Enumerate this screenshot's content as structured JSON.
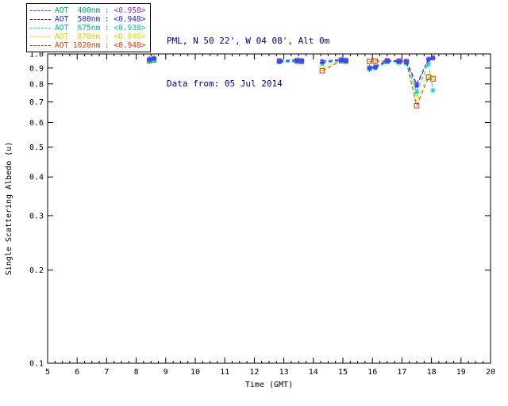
{
  "header": {
    "station_line": "PML, N 50 22', W 04 08', Alt 0m",
    "date_line": "Data from: 05 Jul 2014",
    "text_color": "#00008b"
  },
  "legend": {
    "separator": " : ",
    "entries": [
      {
        "label": "AOT  400nm",
        "value": "<0.958>",
        "line_color": "#4848ff",
        "label_color": "#00a878",
        "value_color": "#8a2be2"
      },
      {
        "label": "AOT  500nm",
        "value": "<0.948>",
        "line_color": "#0000d0",
        "label_color": "#2222ee",
        "value_color": "#2222ee"
      },
      {
        "label": "AOT  675nm",
        "value": "<0.938>",
        "line_color": "#00dcc8",
        "label_color": "#00b386",
        "value_color": "#00c8a0"
      },
      {
        "label": "AOT  870nm",
        "value": "<0.946>",
        "line_color": "#f0e000",
        "label_color": "#e0d000",
        "value_color": "#e8d800"
      },
      {
        "label": "AOT 1020nm",
        "value": "<0.948>",
        "line_color": "#b03010",
        "label_color": "#e04000",
        "value_color": "#ff3000"
      }
    ]
  },
  "chart_data": {
    "type": "scatter",
    "title": "",
    "xlabel": "Time (GMT)",
    "ylabel": "Single Scattering Albedo (u)",
    "xlim": [
      5,
      20
    ],
    "ylim": [
      0.1,
      1.0
    ],
    "yscale": "log",
    "grid": false,
    "legend_position": "top-left",
    "line_style": "dashed",
    "connect_gap_max_hours": 0.7,
    "xticks": [
      5,
      6,
      7,
      8,
      9,
      10,
      11,
      12,
      13,
      14,
      15,
      16,
      17,
      18,
      19,
      20
    ],
    "yticks": [
      1.0,
      0.9,
      0.8,
      0.7,
      0.6,
      0.5,
      0.4,
      0.3,
      0.2,
      0.1
    ],
    "x": [
      8.45,
      8.6,
      12.85,
      13.45,
      13.6,
      14.3,
      14.95,
      15.1,
      15.9,
      16.1,
      16.5,
      16.9,
      17.15,
      17.5,
      17.9,
      18.05
    ],
    "series": [
      {
        "name": "AOT 870nm",
        "legend_value": "<0.946>",
        "color": "#f0e000",
        "marker": "square",
        "values": [
          0.952,
          0.958,
          0.95,
          0.95,
          0.948,
          0.9,
          0.952,
          0.95,
          0.948,
          0.95,
          0.95,
          0.948,
          0.945,
          0.72,
          0.845,
          0.838
        ]
      },
      {
        "name": "AOT 1020nm",
        "legend_value": "<0.948>",
        "color": "#d04010",
        "marker": "square",
        "values": [
          0.95,
          0.956,
          0.948,
          0.948,
          0.946,
          0.882,
          0.95,
          0.948,
          0.946,
          0.948,
          0.948,
          0.946,
          0.942,
          0.68,
          0.84,
          0.83
        ]
      },
      {
        "name": "AOT 675nm",
        "legend_value": "<0.938>",
        "color": "#00d8c0",
        "marker": "asterisk",
        "values": [
          0.945,
          0.952,
          0.94,
          0.942,
          0.94,
          0.93,
          0.948,
          0.942,
          0.89,
          0.898,
          0.94,
          0.935,
          0.932,
          0.752,
          0.93,
          0.762
        ]
      },
      {
        "name": "AOT 500nm",
        "legend_value": "<0.948>",
        "color": "#2828d8",
        "marker": "asterisk",
        "values": [
          0.958,
          0.965,
          0.945,
          0.95,
          0.948,
          0.94,
          0.955,
          0.95,
          0.898,
          0.905,
          0.948,
          0.945,
          0.942,
          0.788,
          0.958,
          0.968
        ]
      },
      {
        "name": "AOT 400nm",
        "legend_value": "<0.958>",
        "color": "#4848ff",
        "marker": "asterisk",
        "values": [
          0.965,
          0.972,
          0.952,
          0.958,
          0.955,
          0.948,
          0.962,
          0.958,
          0.905,
          0.912,
          0.955,
          0.952,
          0.95,
          0.8,
          0.965,
          0.975
        ]
      }
    ]
  }
}
